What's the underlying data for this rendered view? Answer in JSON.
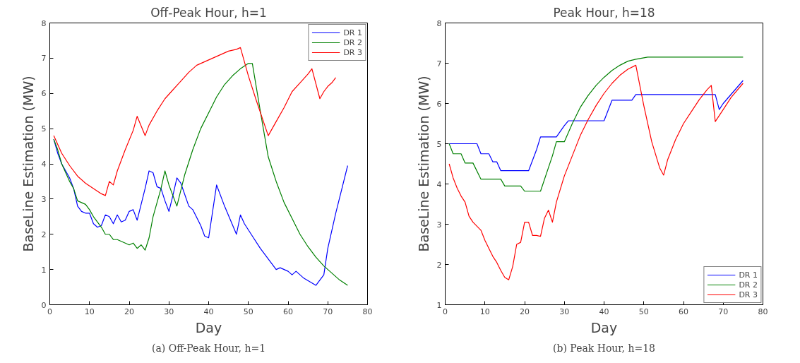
{
  "chart_data": [
    {
      "type": "line",
      "title": "Off-Peak Hour, h=1",
      "xlabel": "Day",
      "ylabel": "BaseLine Estimation (MW)",
      "xlim": [
        0,
        80
      ],
      "ylim": [
        0,
        8
      ],
      "xticks": [
        0,
        10,
        20,
        30,
        40,
        50,
        60,
        70,
        80
      ],
      "yticks": [
        0,
        1,
        2,
        3,
        4,
        5,
        6,
        7,
        8
      ],
      "grid": false,
      "legend": "top right",
      "marker": "none",
      "line_style": "solid",
      "annotations": [
        "(a) Off-Peak Hour, h=1"
      ],
      "series": [
        {
          "name": "DR 1",
          "color": "#0000ff",
          "x": [
            1,
            2,
            3,
            5,
            6,
            7,
            8,
            9,
            10,
            11,
            12,
            13,
            14,
            15,
            16,
            17,
            18,
            19,
            20,
            21,
            22,
            24,
            25,
            26,
            27,
            28,
            29,
            30,
            31,
            32,
            33,
            35,
            36,
            38,
            39,
            40,
            42,
            44,
            47,
            48,
            49,
            51,
            53,
            55,
            57,
            58,
            59,
            60,
            61,
            62,
            64,
            67,
            68,
            69,
            70,
            72,
            75
          ],
          "values": [
            4.7,
            4.3,
            4.0,
            3.6,
            3.3,
            2.8,
            2.65,
            2.6,
            2.6,
            2.3,
            2.2,
            2.25,
            2.55,
            2.5,
            2.3,
            2.55,
            2.35,
            2.4,
            2.65,
            2.7,
            2.4,
            3.3,
            3.8,
            3.75,
            3.35,
            3.3,
            2.95,
            2.65,
            3.1,
            3.6,
            3.45,
            2.8,
            2.7,
            2.25,
            1.95,
            1.9,
            3.4,
            2.8,
            2.0,
            2.55,
            2.3,
            1.95,
            1.6,
            1.3,
            1.0,
            1.05,
            1.0,
            0.95,
            0.85,
            0.95,
            0.75,
            0.55,
            0.7,
            0.85,
            1.6,
            2.6,
            3.95
          ]
        },
        {
          "name": "DR 2",
          "color": "#008000",
          "x": [
            1,
            2,
            3,
            5,
            6,
            7,
            8,
            9,
            10,
            11,
            12,
            13,
            14,
            15,
            16,
            17,
            18,
            19,
            20,
            21,
            22,
            23,
            24,
            25,
            26,
            28,
            29,
            30,
            32,
            34,
            36,
            38,
            40,
            42,
            44,
            46,
            48,
            50,
            51,
            53,
            55,
            57,
            59,
            61,
            63,
            65,
            67,
            69,
            71,
            73,
            75
          ],
          "values": [
            4.7,
            4.4,
            4.0,
            3.5,
            3.3,
            2.95,
            2.9,
            2.85,
            2.7,
            2.5,
            2.35,
            2.2,
            2.0,
            2.0,
            1.85,
            1.85,
            1.8,
            1.75,
            1.7,
            1.75,
            1.6,
            1.7,
            1.55,
            1.9,
            2.5,
            3.3,
            3.8,
            3.4,
            2.8,
            3.7,
            4.4,
            5.0,
            5.45,
            5.9,
            6.25,
            6.5,
            6.7,
            6.85,
            6.85,
            5.5,
            4.2,
            3.5,
            2.9,
            2.45,
            2.0,
            1.65,
            1.35,
            1.1,
            0.9,
            0.7,
            0.55
          ]
        },
        {
          "name": "DR 3",
          "color": "#ff0000",
          "x": [
            1,
            3,
            5,
            7,
            9,
            11,
            13,
            14,
            15,
            16,
            17,
            19,
            21,
            22,
            24,
            25,
            27,
            29,
            31,
            33,
            35,
            37,
            39,
            41,
            43,
            45,
            47,
            48,
            50,
            52,
            55,
            57,
            59,
            61,
            63,
            65,
            66,
            68,
            69,
            70,
            71,
            72
          ],
          "values": [
            4.8,
            4.3,
            3.95,
            3.65,
            3.45,
            3.3,
            3.15,
            3.1,
            3.5,
            3.4,
            3.8,
            4.4,
            4.95,
            5.35,
            4.8,
            5.1,
            5.5,
            5.85,
            6.1,
            6.35,
            6.6,
            6.8,
            6.9,
            7.0,
            7.1,
            7.2,
            7.25,
            7.3,
            6.5,
            5.8,
            4.8,
            5.2,
            5.6,
            6.05,
            6.3,
            6.55,
            6.7,
            5.85,
            6.05,
            6.2,
            6.3,
            6.45
          ]
        }
      ]
    },
    {
      "type": "line",
      "title": "Peak Hour, h=18",
      "xlabel": "Day",
      "ylabel": "BaseLine Estimation (MW)",
      "xlim": [
        0,
        80
      ],
      "ylim": [
        1,
        8
      ],
      "xticks": [
        0,
        10,
        20,
        30,
        40,
        50,
        60,
        70,
        80
      ],
      "yticks": [
        1,
        2,
        3,
        4,
        5,
        6,
        7,
        8
      ],
      "grid": false,
      "legend": "bottom right",
      "marker": "none",
      "line_style": "solid",
      "annotations": [
        "(b) Peak Hour, h=18"
      ],
      "series": [
        {
          "name": "DR 1",
          "color": "#0000ff",
          "x": [
            1,
            8,
            9,
            11,
            12,
            13,
            14,
            21,
            23,
            24,
            28,
            30,
            31,
            40,
            42,
            47,
            48,
            68,
            69,
            70,
            75
          ],
          "values": [
            5.0,
            5.0,
            4.75,
            4.75,
            4.55,
            4.55,
            4.33,
            4.33,
            4.85,
            5.17,
            5.17,
            5.45,
            5.57,
            5.57,
            6.08,
            6.08,
            6.22,
            6.22,
            5.85,
            6.0,
            6.57
          ]
        },
        {
          "name": "DR 2",
          "color": "#008000",
          "x": [
            1,
            2,
            4,
            5,
            7,
            9,
            14,
            15,
            19,
            20,
            24,
            27,
            28,
            30,
            32,
            34,
            36,
            38,
            40,
            42,
            44,
            46,
            48,
            51,
            75
          ],
          "values": [
            5.0,
            4.75,
            4.75,
            4.52,
            4.52,
            4.12,
            4.12,
            3.95,
            3.95,
            3.82,
            3.82,
            4.7,
            5.05,
            5.05,
            5.5,
            5.9,
            6.2,
            6.45,
            6.65,
            6.82,
            6.95,
            7.05,
            7.1,
            7.15,
            7.15
          ]
        },
        {
          "name": "DR 3",
          "color": "#ff0000",
          "x": [
            1,
            2,
            3,
            4,
            5,
            6,
            7,
            8,
            9,
            10,
            11,
            12,
            13,
            14,
            15,
            16,
            17,
            18,
            19,
            20,
            21,
            22,
            23,
            24,
            25,
            26,
            27,
            28,
            30,
            32,
            34,
            36,
            38,
            40,
            42,
            44,
            46,
            48,
            50,
            52,
            54,
            55,
            56,
            58,
            60,
            62,
            64,
            66,
            67,
            68,
            70,
            72,
            75
          ],
          "values": [
            4.5,
            4.15,
            3.9,
            3.7,
            3.55,
            3.2,
            3.05,
            2.95,
            2.85,
            2.6,
            2.4,
            2.2,
            2.05,
            1.85,
            1.68,
            1.62,
            1.95,
            2.5,
            2.55,
            3.05,
            3.05,
            2.72,
            2.72,
            2.7,
            3.15,
            3.35,
            3.05,
            3.55,
            4.2,
            4.7,
            5.2,
            5.6,
            5.95,
            6.25,
            6.5,
            6.7,
            6.85,
            6.95,
            5.95,
            5.05,
            4.4,
            4.22,
            4.6,
            5.1,
            5.5,
            5.8,
            6.1,
            6.35,
            6.45,
            5.55,
            5.85,
            6.15,
            6.5
          ]
        }
      ]
    }
  ]
}
